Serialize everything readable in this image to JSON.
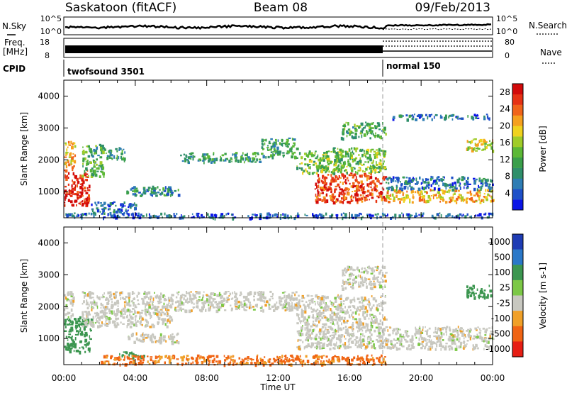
{
  "header": {
    "station": "Saskatoon (fitACF)",
    "beam": "Beam 08",
    "date": "09/Feb/2013"
  },
  "side_labels": {
    "nsky": "N.Sky",
    "freq": "Freq.",
    "freq_unit": "[MHz]",
    "cpid": "CPID",
    "nsearch": "N.Search",
    "nave": "Nave"
  },
  "mini_axes": {
    "noise_ticks": [
      "10^5",
      "10^0"
    ],
    "noise_ticks_right": [
      "10^5",
      "10^0"
    ],
    "freq_ticks": [
      "18",
      "8"
    ],
    "nave_ticks": [
      "80",
      "0"
    ]
  },
  "cpid": {
    "segments": [
      {
        "name": "twofsound 3501",
        "start_hour": 0,
        "end_hour": 18
      },
      {
        "name": "normal 150",
        "start_hour": 18,
        "end_hour": 24
      }
    ]
  },
  "x_axis": {
    "label": "Time UT",
    "ticks": [
      "00:00",
      "04:00",
      "08:00",
      "12:00",
      "16:00",
      "20:00",
      "00:00"
    ]
  },
  "chart_data": [
    {
      "type": "heatmap",
      "title": "",
      "xlabel": "Time UT",
      "ylabel": "Slant Range [km]",
      "xlim_hours": [
        0,
        24
      ],
      "ylim": [
        180,
        4500
      ],
      "y_ticks": [
        1000,
        2000,
        3000,
        4000
      ],
      "colorbar": {
        "label": "Power [dB]",
        "ticks": [
          "4",
          "8",
          "12",
          "16",
          "20",
          "24",
          "28"
        ],
        "range": [
          0,
          30
        ],
        "colors": [
          "#0a14e6",
          "#1e50c8",
          "#2e7db4",
          "#2f8f6a",
          "#3a9f4a",
          "#5cb836",
          "#a0cc28",
          "#f0d21e",
          "#f5a01e",
          "#f0641a",
          "#e63214",
          "#d20a0a"
        ]
      },
      "echo_regions": [
        {
          "t_start": 0.0,
          "t_end": 1.4,
          "r_start": 600,
          "r_end": 1700,
          "power_db": 28
        },
        {
          "t_start": 0.0,
          "t_end": 0.6,
          "r_start": 1700,
          "r_end": 2600,
          "power_db": 20
        },
        {
          "t_start": 1.0,
          "t_end": 2.2,
          "r_start": 1500,
          "r_end": 2500,
          "power_db": 12
        },
        {
          "t_start": 2.2,
          "t_end": 3.4,
          "r_start": 2000,
          "r_end": 2400,
          "power_db": 10
        },
        {
          "t_start": 3.5,
          "t_end": 6.5,
          "r_start": 900,
          "r_end": 1200,
          "power_db": 8
        },
        {
          "t_start": 1.5,
          "t_end": 4.0,
          "r_start": 300,
          "r_end": 700,
          "power_db": 6
        },
        {
          "t_start": 6.5,
          "t_end": 11.0,
          "r_start": 1950,
          "r_end": 2250,
          "power_db": 10
        },
        {
          "t_start": 11.0,
          "t_end": 13.0,
          "r_start": 2100,
          "r_end": 2700,
          "power_db": 10
        },
        {
          "t_start": 13.0,
          "t_end": 15.5,
          "r_start": 1600,
          "r_end": 2300,
          "power_db": 14
        },
        {
          "t_start": 14.0,
          "t_end": 18.0,
          "r_start": 700,
          "r_end": 1600,
          "power_db": 26
        },
        {
          "t_start": 15.0,
          "t_end": 18.0,
          "r_start": 1600,
          "r_end": 2400,
          "power_db": 14
        },
        {
          "t_start": 15.5,
          "t_end": 18.0,
          "r_start": 2700,
          "r_end": 3200,
          "power_db": 12
        },
        {
          "t_start": 18.0,
          "t_end": 24.0,
          "r_start": 700,
          "r_end": 1100,
          "power_db": 20
        },
        {
          "t_start": 18.0,
          "t_end": 24.0,
          "r_start": 1100,
          "r_end": 1500,
          "power_db": 6
        },
        {
          "t_start": 22.5,
          "t_end": 24.0,
          "r_start": 2300,
          "r_end": 2700,
          "power_db": 18
        },
        {
          "t_start": 18.0,
          "t_end": 24.0,
          "r_start": 3300,
          "r_end": 3450,
          "power_db": 6
        },
        {
          "t_start": 0.0,
          "t_end": 24.0,
          "r_start": 200,
          "r_end": 350,
          "power_db": 5
        }
      ]
    },
    {
      "type": "heatmap",
      "title": "",
      "xlabel": "Time UT",
      "ylabel": "Slant Range [km]",
      "xlim_hours": [
        0,
        24
      ],
      "ylim": [
        180,
        4500
      ],
      "y_ticks": [
        1000,
        2000,
        3000,
        4000
      ],
      "colorbar": {
        "label": "Velocity [m s-1]",
        "ticks": [
          "1000",
          "500",
          "100",
          "25",
          "-25",
          "-100",
          "-500",
          "-1000"
        ],
        "colors": [
          "#1e3cb4",
          "#2a78c8",
          "#3c9650",
          "#7cc846",
          "#c8c8c0",
          "#f0a028",
          "#f06414",
          "#e61e14"
        ]
      },
      "echo_regions": [
        {
          "t_start": 0.0,
          "t_end": 1.5,
          "r_start": 600,
          "r_end": 1700,
          "velocity": 120
        },
        {
          "t_start": 0.0,
          "t_end": 0.5,
          "r_start": 1700,
          "r_end": 2500,
          "velocity": 0
        },
        {
          "t_start": 1.0,
          "t_end": 6.0,
          "r_start": 1400,
          "r_end": 2500,
          "velocity": 0
        },
        {
          "t_start": 3.5,
          "t_end": 6.5,
          "r_start": 900,
          "r_end": 1200,
          "velocity": 0
        },
        {
          "t_start": 3.0,
          "t_end": 4.5,
          "r_start": 400,
          "r_end": 600,
          "velocity": 150
        },
        {
          "t_start": 6.0,
          "t_end": 13.0,
          "r_start": 1900,
          "r_end": 2500,
          "velocity": 0
        },
        {
          "t_start": 13.0,
          "t_end": 18.0,
          "r_start": 700,
          "r_end": 2400,
          "velocity": 0
        },
        {
          "t_start": 15.5,
          "t_end": 18.0,
          "r_start": 2600,
          "r_end": 3300,
          "velocity": 0
        },
        {
          "t_start": 18.0,
          "t_end": 24.0,
          "r_start": 700,
          "r_end": 1400,
          "velocity": 0
        },
        {
          "t_start": 22.5,
          "t_end": 24.0,
          "r_start": 2300,
          "r_end": 2700,
          "velocity": 200
        },
        {
          "t_start": 2.0,
          "t_end": 18.0,
          "r_start": 200,
          "r_end": 500,
          "velocity": -110
        }
      ]
    }
  ]
}
